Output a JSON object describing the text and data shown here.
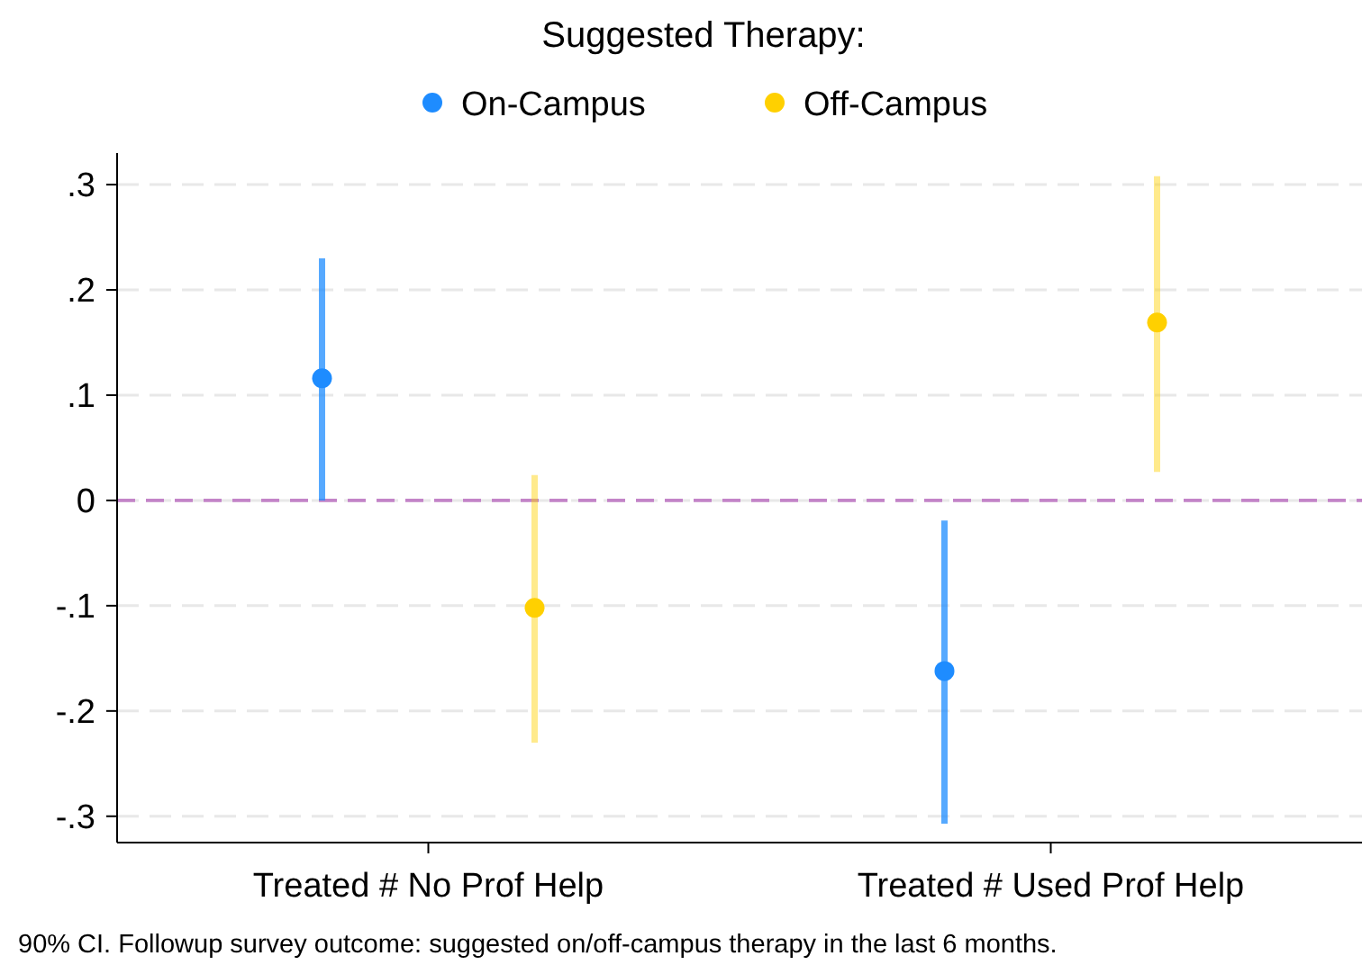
{
  "chart_data": {
    "type": "scatter",
    "legend_title": "Suggested Therapy:",
    "legend": "top",
    "categories": [
      "Treated # No Prof Help",
      "Treated # Used Prof Help"
    ],
    "series": [
      {
        "name": "On-Campus",
        "color": "#1e8cff",
        "values": [
          0.116,
          -0.162
        ],
        "errors": [
          [
            0.0,
            0.23
          ],
          [
            -0.307,
            -0.019
          ]
        ]
      },
      {
        "name": "Off-Campus",
        "color": "#ffd000",
        "values": [
          -0.102,
          0.169
        ],
        "errors": [
          [
            -0.23,
            0.024
          ],
          [
            0.027,
            0.308
          ]
        ]
      }
    ],
    "ylim": [
      -0.325,
      0.33
    ],
    "yticks": [
      {
        "value": -0.3,
        "label": "-.3"
      },
      {
        "value": -0.2,
        "label": "-.2"
      },
      {
        "value": -0.1,
        "label": "-.1"
      },
      0,
      {
        "value": 0.1,
        "label": ".1"
      },
      {
        "value": 0.2,
        "label": ".2"
      },
      {
        "value": 0.3,
        "label": ".3"
      }
    ],
    "grid": "y",
    "marker": "circle",
    "ref_lines": [
      {
        "axis": "y",
        "value": 0,
        "color": "#c384c8",
        "line_style": "dashed"
      }
    ],
    "annotations": [
      "90% CI. Followup survey outcome: suggested on/off-campus therapy in the last 6 months."
    ]
  }
}
